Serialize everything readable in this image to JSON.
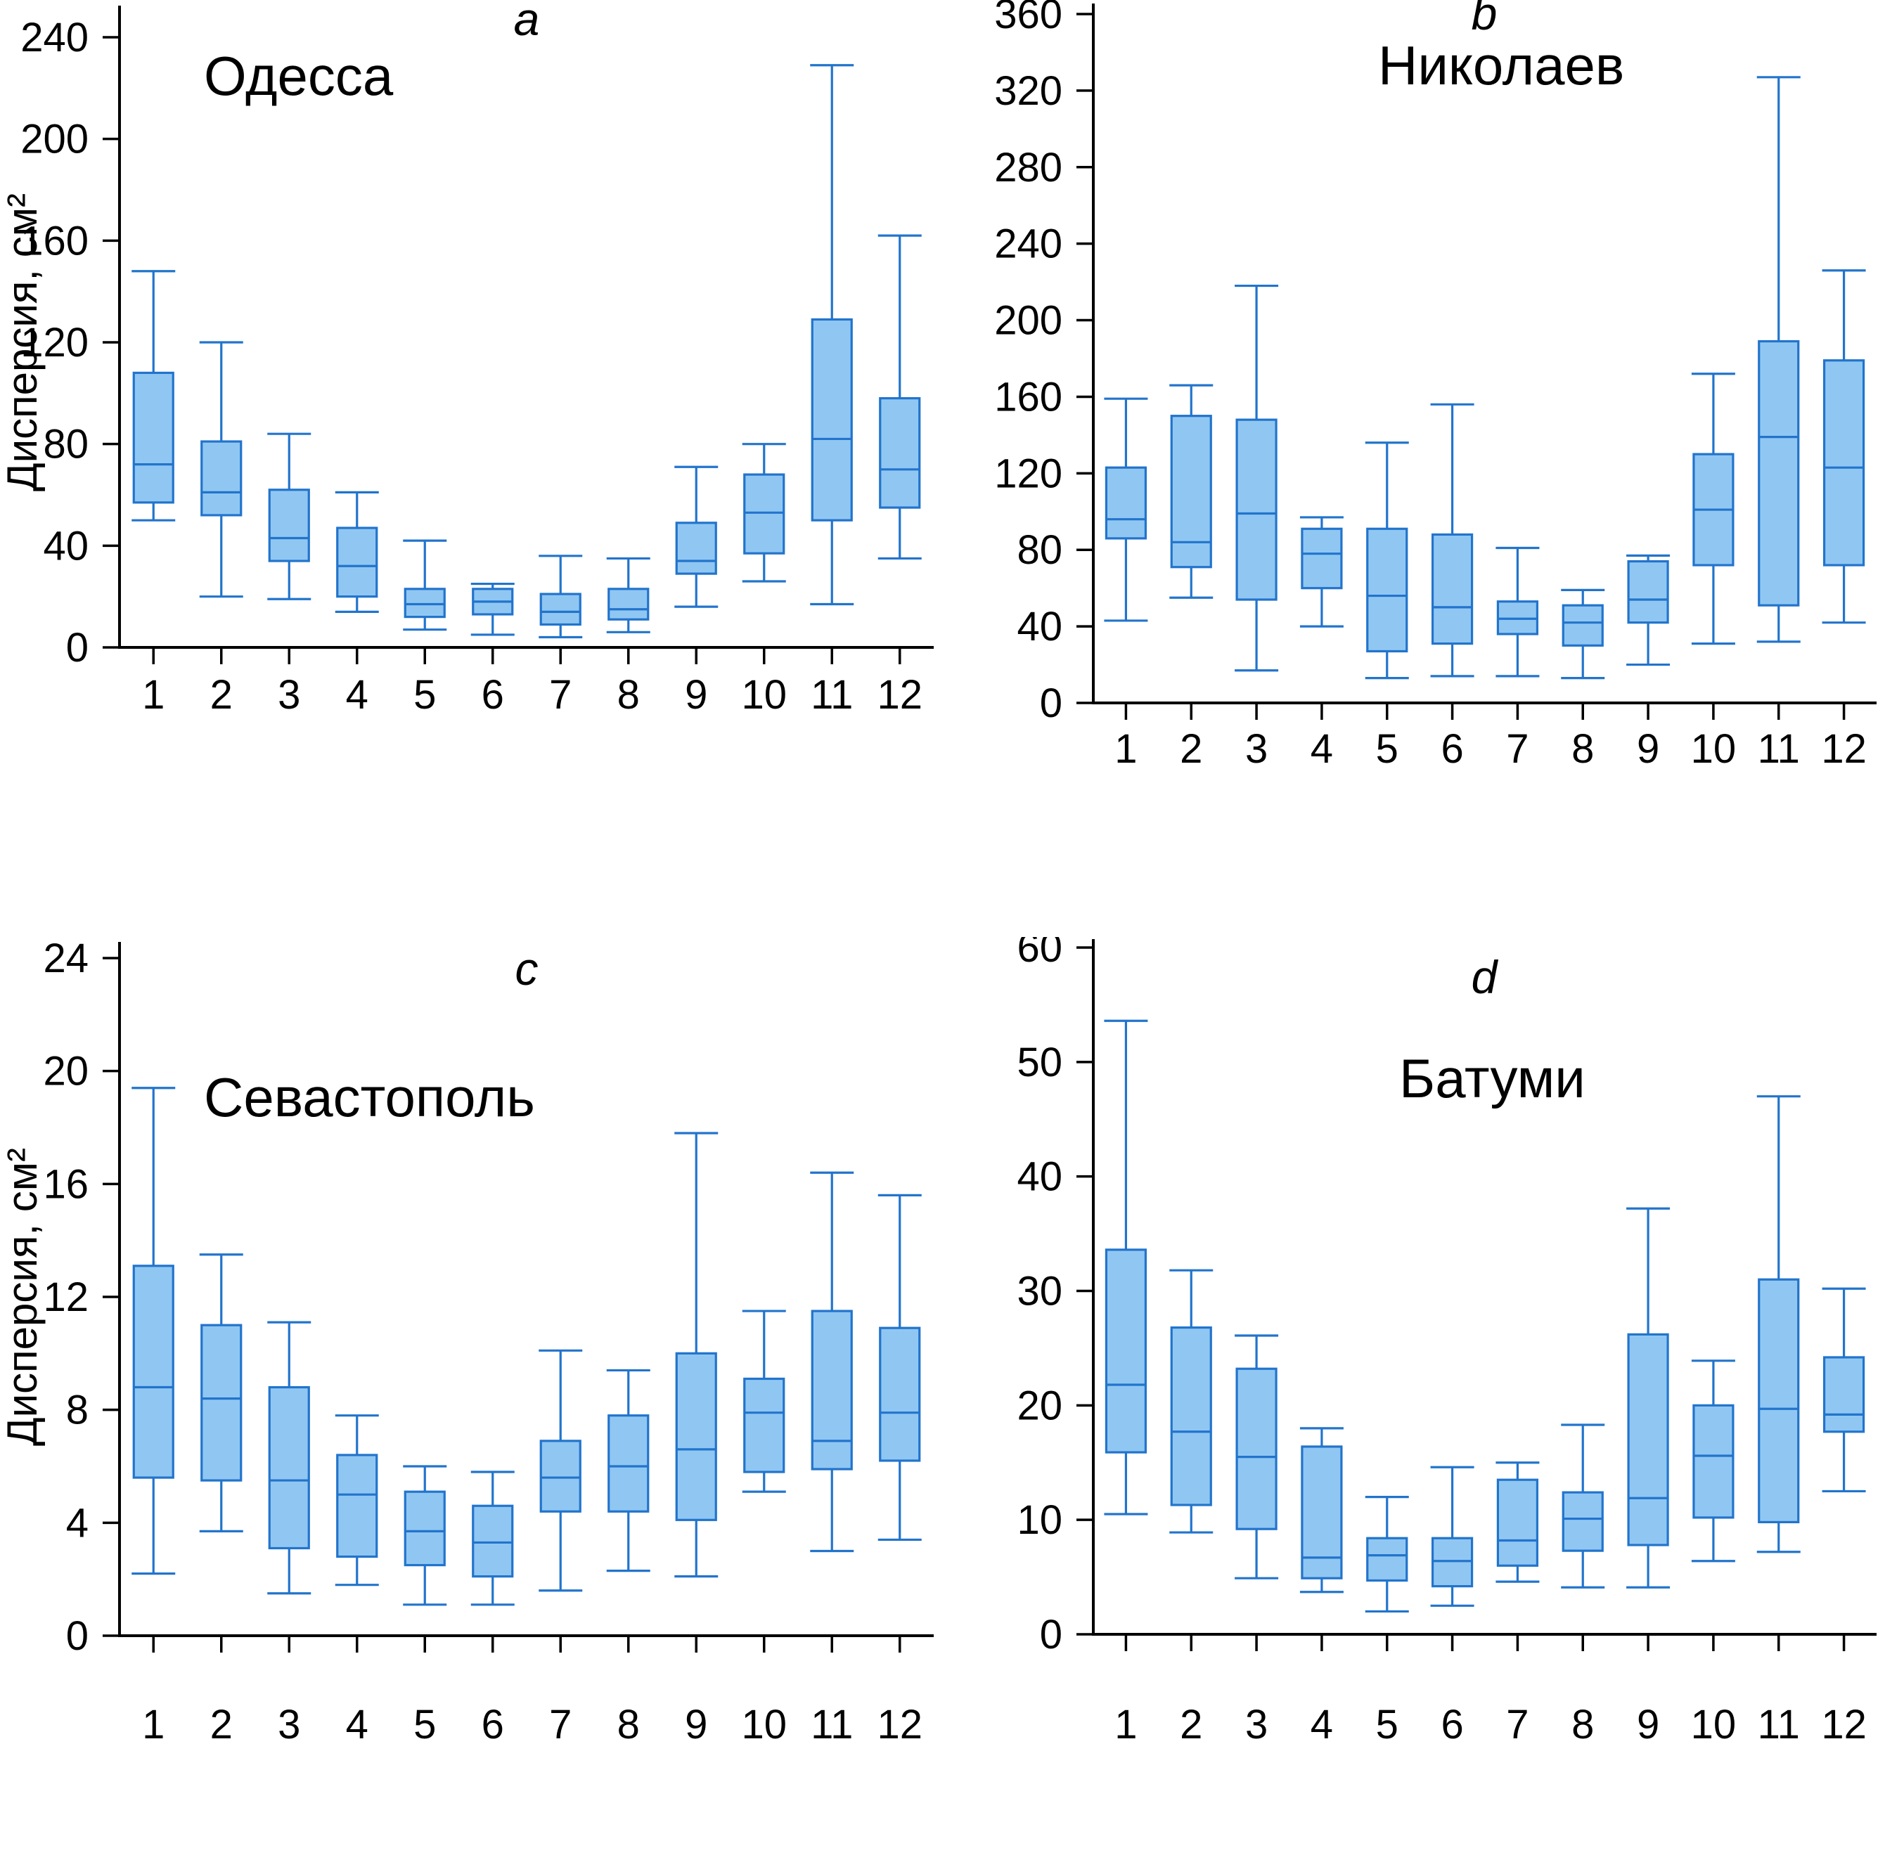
{
  "figure": {
    "y_axis_label": "Дисперсия, см²",
    "months": [
      "1",
      "2",
      "3",
      "4",
      "5",
      "6",
      "7",
      "8",
      "9",
      "10",
      "11",
      "12"
    ]
  },
  "colors": {
    "box_fill": "#90c7f2",
    "box_stroke": "#2274cc",
    "axis": "#000000"
  },
  "chart_data": [
    {
      "type": "box",
      "panel_label": "a",
      "title": "Одесса",
      "ylabel": "Дисперсия, см²",
      "xlabel": "",
      "categories": [
        "1",
        "2",
        "3",
        "4",
        "5",
        "6",
        "7",
        "8",
        "9",
        "10",
        "11",
        "12"
      ],
      "ylim": [
        0,
        240
      ],
      "ytick_step": 40,
      "legend": "none",
      "grid": false,
      "boxes": [
        {
          "low": 50,
          "q1": 57,
          "median": 72,
          "q3": 108,
          "high": 148
        },
        {
          "low": 20,
          "q1": 52,
          "median": 61,
          "q3": 81,
          "high": 120
        },
        {
          "low": 19,
          "q1": 34,
          "median": 43,
          "q3": 62,
          "high": 84
        },
        {
          "low": 14,
          "q1": 20,
          "median": 32,
          "q3": 47,
          "high": 61
        },
        {
          "low": 7,
          "q1": 12,
          "median": 17,
          "q3": 23,
          "high": 42
        },
        {
          "low": 5,
          "q1": 13,
          "median": 18,
          "q3": 23,
          "high": 25
        },
        {
          "low": 4,
          "q1": 9,
          "median": 14,
          "q3": 21,
          "high": 36
        },
        {
          "low": 6,
          "q1": 11,
          "median": 15,
          "q3": 23,
          "high": 35
        },
        {
          "low": 16,
          "q1": 29,
          "median": 34,
          "q3": 49,
          "high": 71
        },
        {
          "low": 26,
          "q1": 37,
          "median": 53,
          "q3": 68,
          "high": 80
        },
        {
          "low": 17,
          "q1": 50,
          "median": 82,
          "q3": 129,
          "high": 229
        },
        {
          "low": 35,
          "q1": 55,
          "median": 70,
          "q3": 98,
          "high": 162
        }
      ]
    },
    {
      "type": "box",
      "panel_label": "b",
      "title": "Николаев",
      "ylabel": "",
      "xlabel": "",
      "categories": [
        "1",
        "2",
        "3",
        "4",
        "5",
        "6",
        "7",
        "8",
        "9",
        "10",
        "11",
        "12"
      ],
      "ylim": [
        0,
        360
      ],
      "ytick_step": 40,
      "legend": "none",
      "grid": false,
      "boxes": [
        {
          "low": 43,
          "q1": 86,
          "median": 96,
          "q3": 123,
          "high": 159
        },
        {
          "low": 55,
          "q1": 71,
          "median": 84,
          "q3": 150,
          "high": 166
        },
        {
          "low": 17,
          "q1": 54,
          "median": 99,
          "q3": 148,
          "high": 218
        },
        {
          "low": 40,
          "q1": 60,
          "median": 78,
          "q3": 91,
          "high": 97
        },
        {
          "low": 13,
          "q1": 27,
          "median": 56,
          "q3": 91,
          "high": 136
        },
        {
          "low": 14,
          "q1": 31,
          "median": 50,
          "q3": 88,
          "high": 156
        },
        {
          "low": 14,
          "q1": 36,
          "median": 44,
          "q3": 53,
          "high": 81
        },
        {
          "low": 13,
          "q1": 30,
          "median": 42,
          "q3": 51,
          "high": 59
        },
        {
          "low": 20,
          "q1": 42,
          "median": 54,
          "q3": 74,
          "high": 77
        },
        {
          "low": 31,
          "q1": 72,
          "median": 101,
          "q3": 130,
          "high": 172
        },
        {
          "low": 32,
          "q1": 51,
          "median": 139,
          "q3": 189,
          "high": 327
        },
        {
          "low": 42,
          "q1": 72,
          "median": 123,
          "q3": 179,
          "high": 226
        }
      ]
    },
    {
      "type": "box",
      "panel_label": "c",
      "title": "Севастополь",
      "ylabel": "Дисперсия, см²",
      "xlabel": "",
      "categories": [
        "1",
        "2",
        "3",
        "4",
        "5",
        "6",
        "7",
        "8",
        "9",
        "10",
        "11",
        "12"
      ],
      "ylim": [
        0,
        24
      ],
      "ytick_step": 4,
      "legend": "none",
      "grid": false,
      "boxes": [
        {
          "low": 2.2,
          "q1": 5.6,
          "median": 8.8,
          "q3": 13.1,
          "high": 19.4
        },
        {
          "low": 3.7,
          "q1": 5.5,
          "median": 8.4,
          "q3": 11.0,
          "high": 13.5
        },
        {
          "low": 1.5,
          "q1": 3.1,
          "median": 5.5,
          "q3": 8.8,
          "high": 11.1
        },
        {
          "low": 1.8,
          "q1": 2.8,
          "median": 5.0,
          "q3": 6.4,
          "high": 7.8
        },
        {
          "low": 1.1,
          "q1": 2.5,
          "median": 3.7,
          "q3": 5.1,
          "high": 6.0
        },
        {
          "low": 1.1,
          "q1": 2.1,
          "median": 3.3,
          "q3": 4.6,
          "high": 5.8
        },
        {
          "low": 1.6,
          "q1": 4.4,
          "median": 5.6,
          "q3": 6.9,
          "high": 10.1
        },
        {
          "low": 2.3,
          "q1": 4.4,
          "median": 6.0,
          "q3": 7.8,
          "high": 9.4
        },
        {
          "low": 2.1,
          "q1": 4.1,
          "median": 6.6,
          "q3": 10.0,
          "high": 17.8
        },
        {
          "low": 5.1,
          "q1": 5.8,
          "median": 7.9,
          "q3": 9.1,
          "high": 11.5
        },
        {
          "low": 3.0,
          "q1": 5.9,
          "median": 6.9,
          "q3": 11.5,
          "high": 16.4
        },
        {
          "low": 3.4,
          "q1": 6.2,
          "median": 7.9,
          "q3": 10.9,
          "high": 15.6
        }
      ]
    },
    {
      "type": "box",
      "panel_label": "d",
      "title": "Батуми",
      "ylabel": "",
      "xlabel": "",
      "categories": [
        "1",
        "2",
        "3",
        "4",
        "5",
        "6",
        "7",
        "8",
        "9",
        "10",
        "11",
        "12"
      ],
      "ylim": [
        0,
        60
      ],
      "ytick_step": 10,
      "legend": "none",
      "grid": false,
      "boxes": [
        {
          "low": 10.5,
          "q1": 15.9,
          "median": 21.8,
          "q3": 33.6,
          "high": 53.6
        },
        {
          "low": 8.9,
          "q1": 11.3,
          "median": 17.7,
          "q3": 26.8,
          "high": 31.8
        },
        {
          "low": 4.9,
          "q1": 9.2,
          "median": 15.5,
          "q3": 23.2,
          "high": 26.1
        },
        {
          "low": 3.7,
          "q1": 4.9,
          "median": 6.7,
          "q3": 16.4,
          "high": 18.0
        },
        {
          "low": 2.0,
          "q1": 4.7,
          "median": 6.9,
          "q3": 8.4,
          "high": 12.0
        },
        {
          "low": 2.5,
          "q1": 4.2,
          "median": 6.4,
          "q3": 8.4,
          "high": 14.6
        },
        {
          "low": 4.6,
          "q1": 6.0,
          "median": 8.2,
          "q3": 13.5,
          "high": 15.0
        },
        {
          "low": 4.1,
          "q1": 7.3,
          "median": 10.1,
          "q3": 12.4,
          "high": 18.3
        },
        {
          "low": 4.1,
          "q1": 7.8,
          "median": 11.9,
          "q3": 26.2,
          "high": 37.2
        },
        {
          "low": 6.4,
          "q1": 10.2,
          "median": 15.6,
          "q3": 20.0,
          "high": 23.9
        },
        {
          "low": 7.2,
          "q1": 9.8,
          "median": 19.7,
          "q3": 31.0,
          "high": 47.0
        },
        {
          "low": 12.5,
          "q1": 17.7,
          "median": 19.2,
          "q3": 24.2,
          "high": 30.2
        }
      ]
    }
  ]
}
